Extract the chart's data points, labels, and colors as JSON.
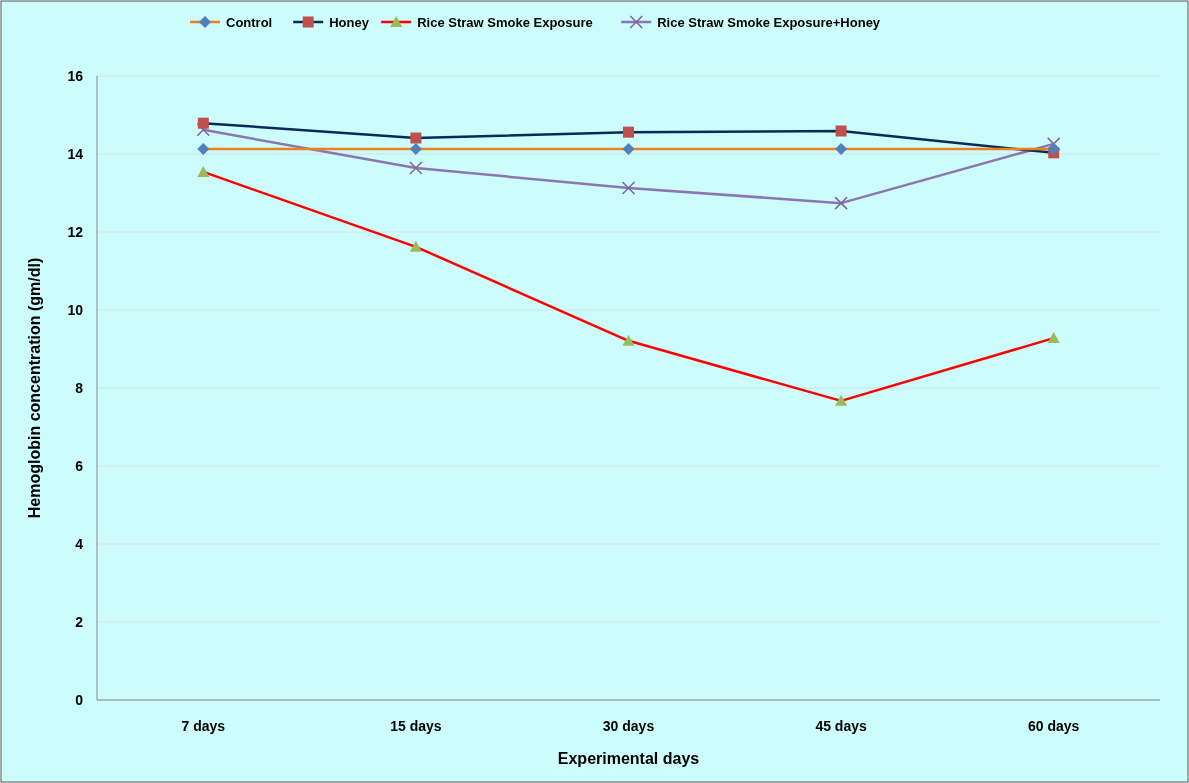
{
  "chart_data": {
    "type": "line",
    "xlabel": "Experimental days",
    "ylabel": "Hemoglobin concentration  (gm/dl)",
    "categories": [
      "7 days",
      "15 days",
      "30 days",
      "45 days",
      "60 days"
    ],
    "ylim": [
      0,
      16
    ],
    "yticks": [
      0,
      2,
      4,
      6,
      8,
      10,
      12,
      14,
      16
    ],
    "grid": "y",
    "legend": "top",
    "line_style": "solid",
    "series": [
      {
        "name": "Control",
        "color": "#f07f1d",
        "marker": "diamond",
        "colors": [
          "#4f81bd",
          "#4f81bd",
          "#4f81bd",
          "#4f81bd",
          "#4f81bd"
        ],
        "values": [
          14.13,
          14.13,
          14.13,
          14.13,
          14.13
        ]
      },
      {
        "name": "Honey",
        "color": "#0b2a5c",
        "marker": "square",
        "colors": [
          "#c0504d",
          "#c0504d",
          "#c0504d",
          "#c0504d",
          "#c0504d"
        ],
        "values": [
          14.79,
          14.41,
          14.56,
          14.59,
          14.03
        ]
      },
      {
        "name": "Rice Straw Smoke Exposure",
        "color": "#ff0000",
        "marker": "triangle",
        "colors": [
          "#9bbb59",
          "#9bbb59",
          "#9bbb59",
          "#9bbb59",
          "#9bbb59"
        ],
        "values": [
          13.54,
          11.62,
          9.21,
          7.67,
          9.28
        ]
      },
      {
        "name": "Rice Straw Smoke Exposure+Honey",
        "color": "#8c76b0",
        "marker": "cross",
        "colors": [
          "#8064a2",
          "#8064a2",
          "#8064a2",
          "#8064a2",
          "#8064a2"
        ],
        "values": [
          14.62,
          13.64,
          13.13,
          12.74,
          14.26
        ]
      }
    ]
  }
}
